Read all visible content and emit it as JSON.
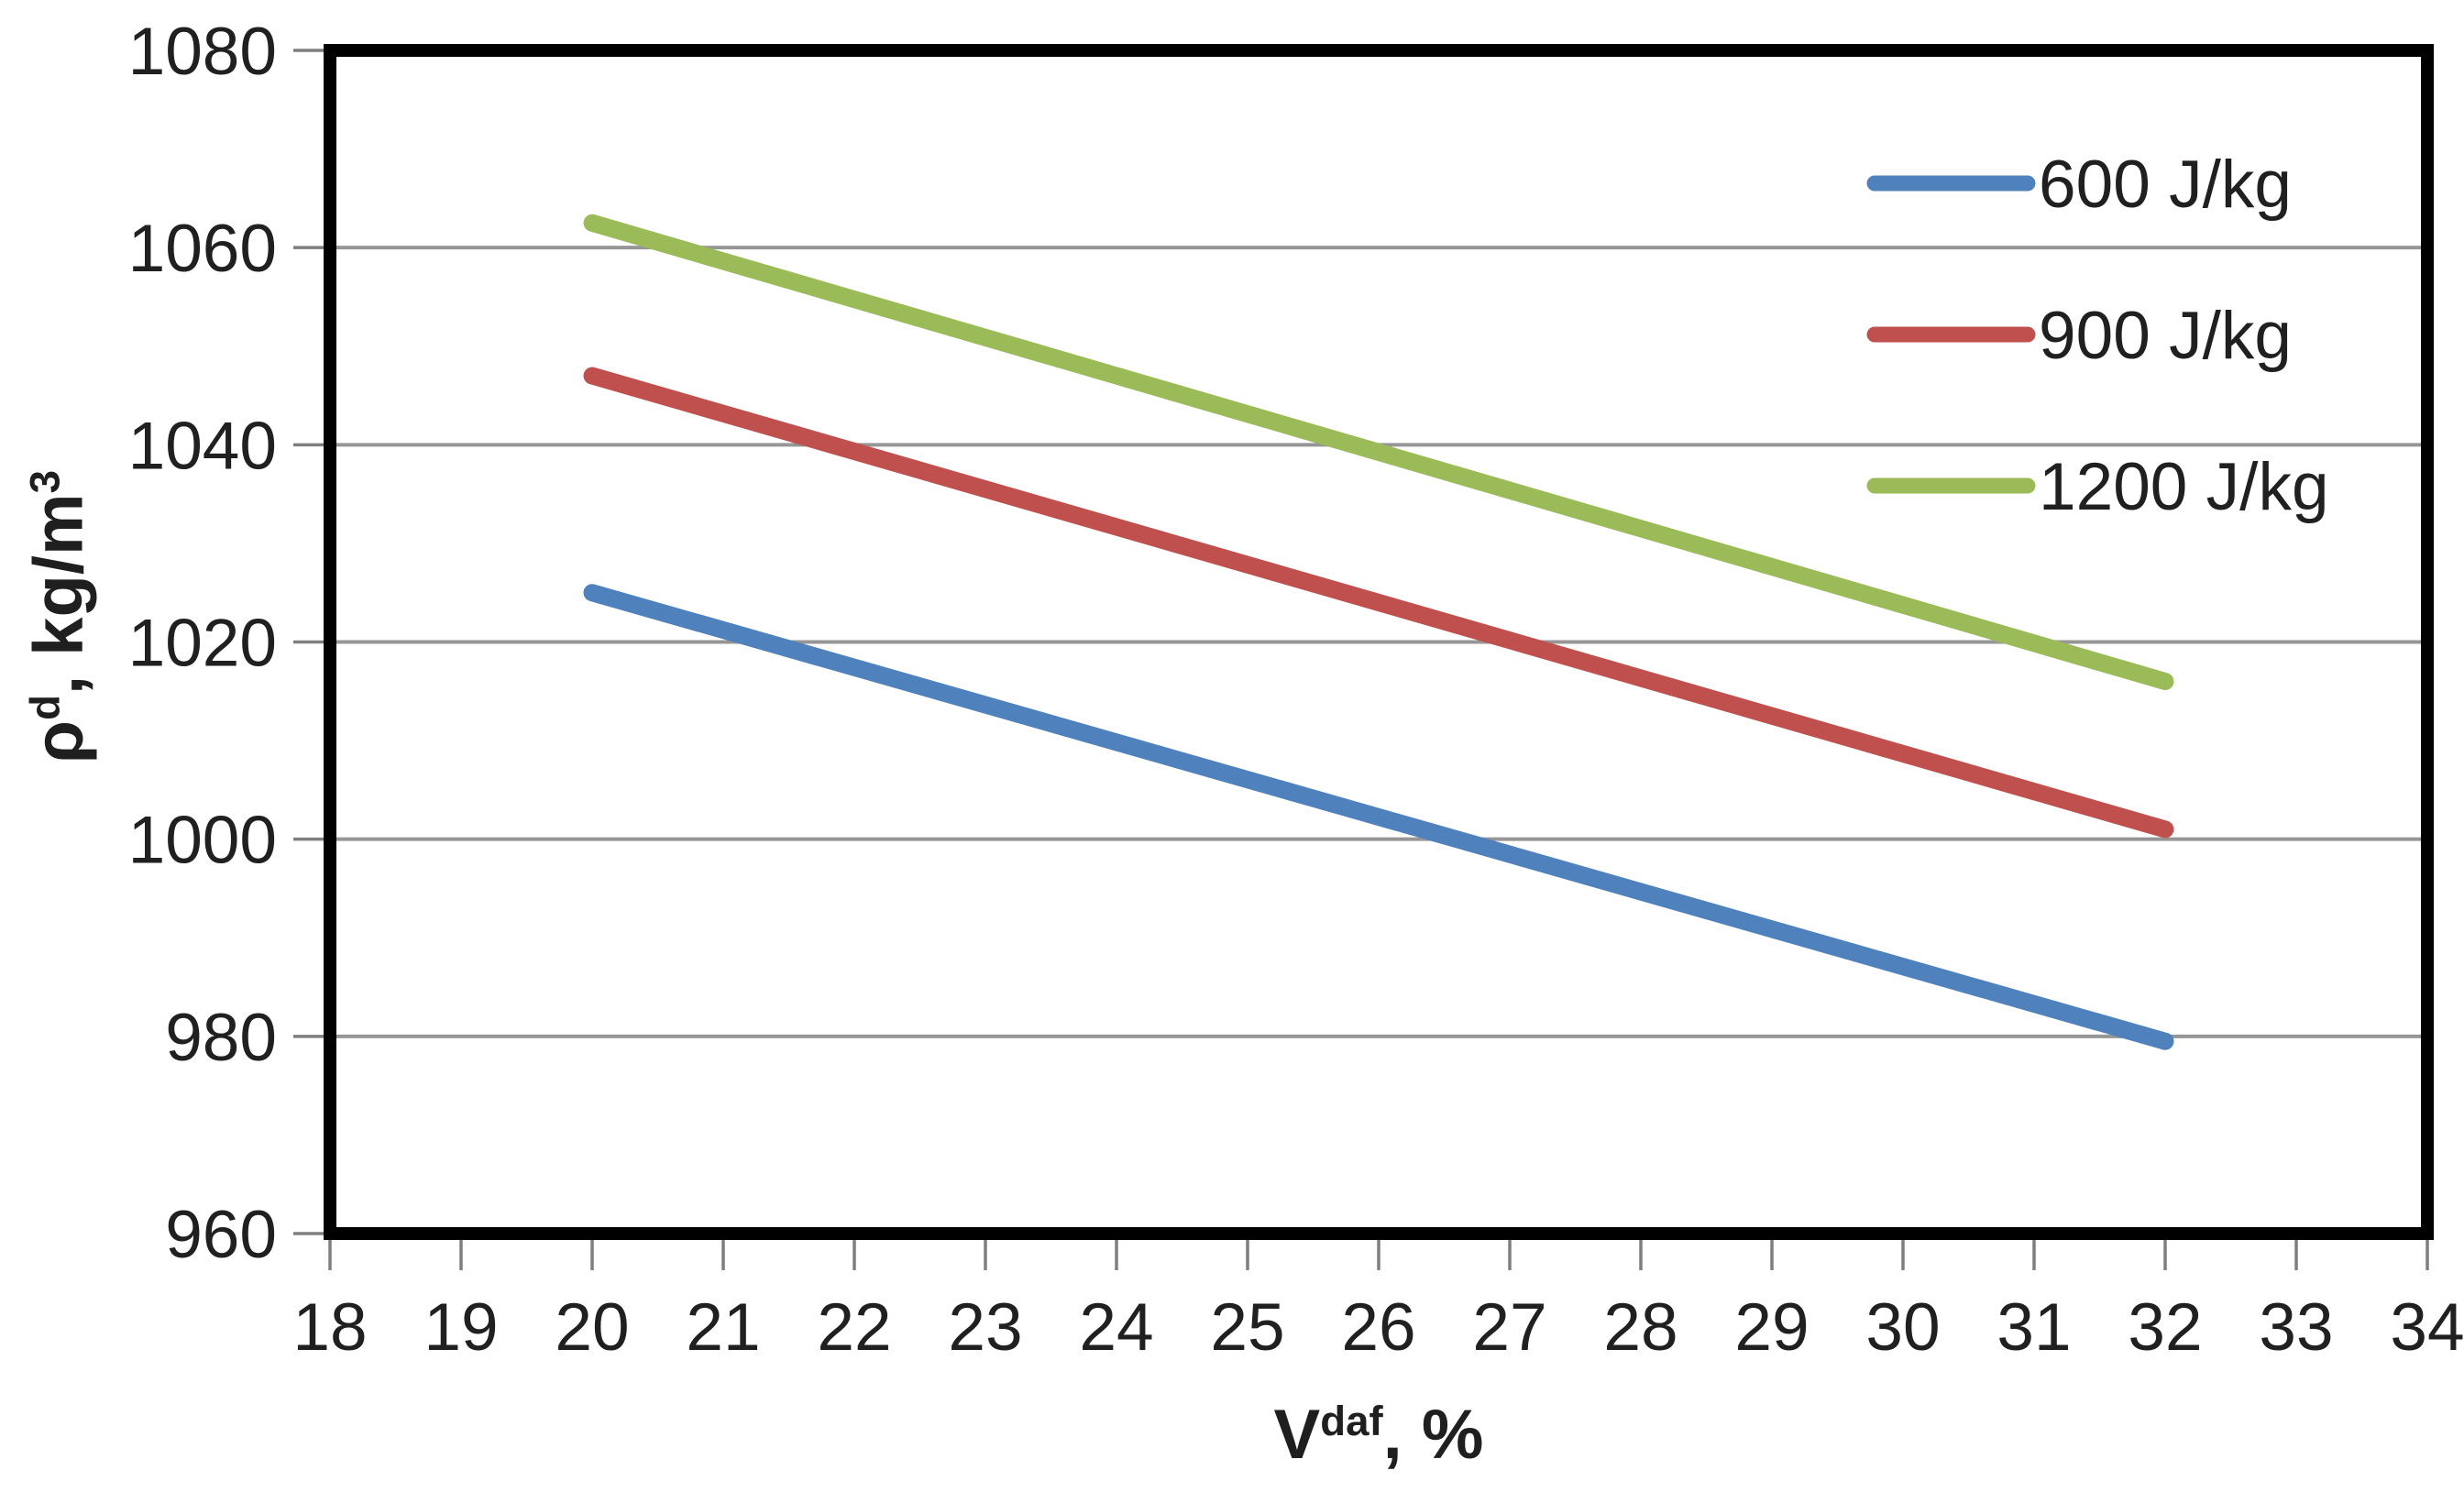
{
  "chart_data": {
    "type": "line",
    "title": "",
    "xlabel": {
      "base": "V",
      "sup": "daf",
      "rest": ", %"
    },
    "ylabel": {
      "base": "ρ",
      "sup": "d",
      "mid": ", kg/m",
      "sup2": "3"
    },
    "xlim": [
      18,
      34
    ],
    "ylim": [
      960,
      1080
    ],
    "xticks": [
      18,
      19,
      20,
      21,
      22,
      23,
      24,
      25,
      26,
      27,
      28,
      29,
      30,
      31,
      32,
      33,
      34
    ],
    "yticks": [
      960,
      980,
      1000,
      1020,
      1040,
      1060,
      1080
    ],
    "grid": "horizontal-only",
    "legend": {
      "position": "inside-top-right",
      "items": [
        "600 J/kg",
        "900 J/kg",
        "1200 J/kg"
      ]
    },
    "series": [
      {
        "name": "600 J/kg",
        "color": "#4F81BD",
        "x": [
          20,
          32
        ],
        "y": [
          1025,
          979.5
        ]
      },
      {
        "name": "900 J/kg",
        "color": "#C0504D",
        "x": [
          20,
          32
        ],
        "y": [
          1047,
          1001
        ]
      },
      {
        "name": "1200 J/kg",
        "color": "#9BBB59",
        "x": [
          20,
          32
        ],
        "y": [
          1062.5,
          1016
        ]
      }
    ],
    "styles": {
      "background": "#FFFFFF",
      "frame_color": "#000000",
      "gridline_color": "#969696",
      "tick_color": "#7F7F7F",
      "text_color": "#202020"
    }
  }
}
